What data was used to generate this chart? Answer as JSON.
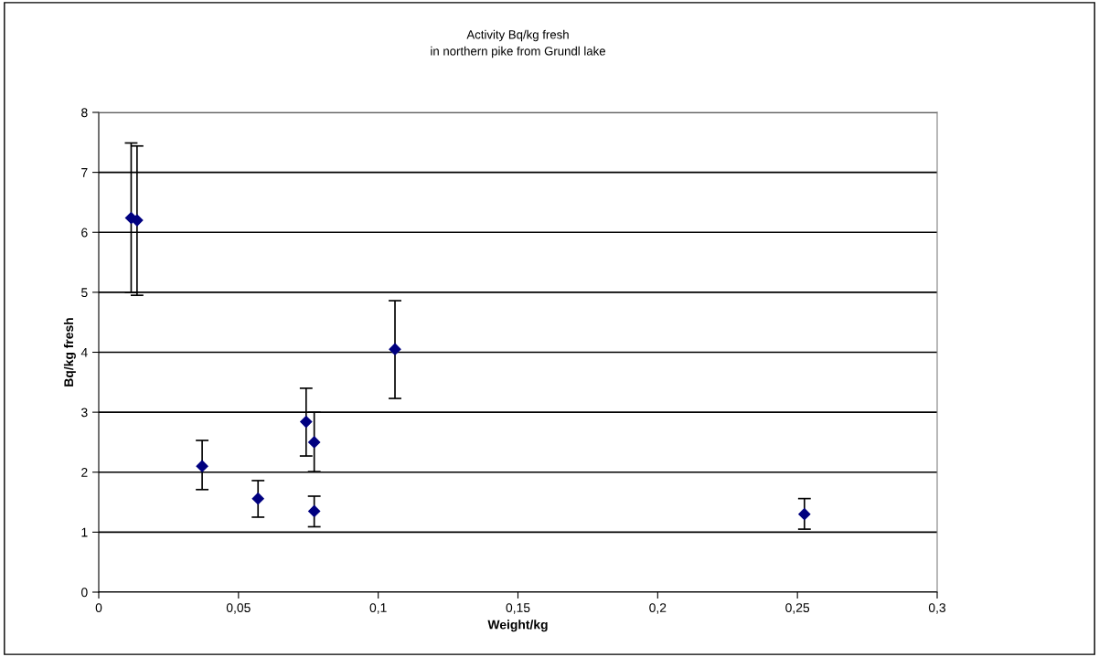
{
  "chart_data": {
    "type": "scatter",
    "title": "Activity Bq/kg fresh\nin northern pike from Grundl lake",
    "xlabel": "Weight/kg",
    "ylabel": "Bq/kg fresh",
    "x": [
      0.0116,
      0.0137,
      0.037,
      0.057,
      0.0742,
      0.0771,
      0.0771,
      0.106,
      0.2525
    ],
    "series": [
      {
        "color": "#000080",
        "values": [
          6.24,
          6.2,
          2.1,
          1.56,
          2.84,
          2.5,
          1.35,
          4.05,
          1.3
        ],
        "errors": [
          [
            5.0,
            7.49
          ],
          [
            4.95,
            7.44
          ],
          [
            1.71,
            2.53
          ],
          [
            1.25,
            1.86
          ],
          [
            2.27,
            3.4
          ],
          [
            2.01,
            3.0
          ],
          [
            1.09,
            1.6
          ],
          [
            3.23,
            4.86
          ],
          [
            1.05,
            1.56
          ]
        ]
      }
    ],
    "xlim": [
      0,
      0.3
    ],
    "xticks": [
      {
        "value": 0,
        "label": "0"
      },
      {
        "value": 0.05,
        "label": "0,05"
      },
      {
        "value": 0.1,
        "label": "0,1"
      },
      {
        "value": 0.15,
        "label": "0,15"
      },
      {
        "value": 0.2,
        "label": "0,2"
      },
      {
        "value": 0.25,
        "label": "0,25"
      },
      {
        "value": 0.3,
        "label": "0,3"
      }
    ],
    "ylim": [
      0,
      8
    ],
    "yticks": [
      0,
      1,
      2,
      3,
      4,
      5,
      6,
      7,
      8
    ],
    "grid": "y",
    "marker": "diamond"
  }
}
